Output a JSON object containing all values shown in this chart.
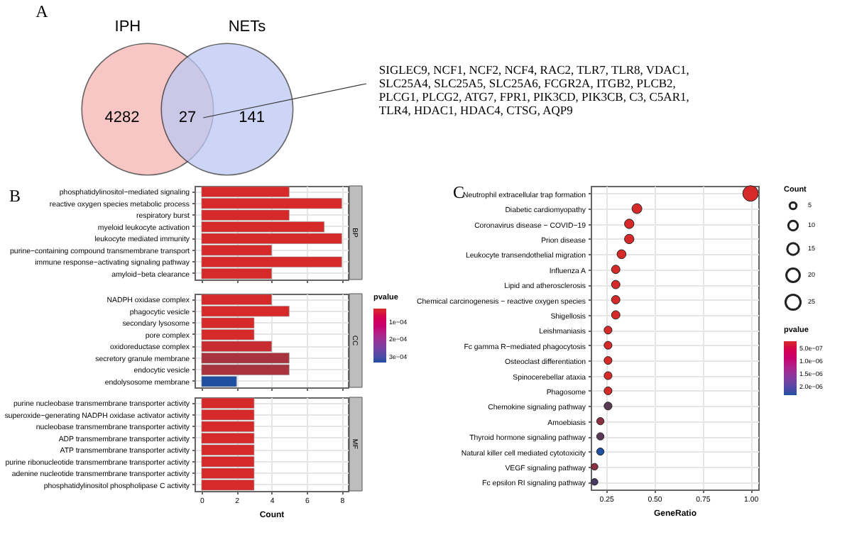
{
  "chart_data": [
    {
      "type": "other",
      "title": "A",
      "categories": [
        "IPH",
        null,
        "NETs"
      ],
      "values": [
        4282,
        27,
        141
      ],
      "colors": [
        "#f7b3b3",
        null,
        "#bcc8f2"
      ],
      "data_labels": true,
      "annotations": [
        "SIGLEC9, NCF1, NCF2, NCF4, RAC2, TLR7, TLR8, VDAC1, SLC25A4, SLC25A5, SLC25A6, FCGR2A, ITGB2, PLCB2, PLCG1, PLCG2, ATG7, FPR1, PIK3CD, PIK3CB, C3, C5AR1, TLR4, HDAC1, HDAC4, CTSG, AQP9"
      ]
    },
    {
      "type": "bar",
      "orientation": "horizontal",
      "title": "B",
      "annotations": [
        "BP"
      ],
      "tick_labels": "y",
      "grid": true,
      "categories": [
        "phosphatidylinositol−mediated signaling",
        "reactive oxygen species metabolic process",
        "respiratory burst",
        "myeloid leukocyte activation",
        "leukocyte mediated immunity",
        "purine−containing compound transmembrane transport",
        "immune response−activating signaling pathway",
        "amyloid−beta clearance"
      ],
      "values": [
        5,
        8,
        5,
        7,
        8,
        4,
        8,
        4
      ],
      "colors": [
        "#d62a2a",
        "#d62a2a",
        "#d62a2a",
        "#d62a2a",
        "#d62a2a",
        "#d62a2a",
        "#d62a2a",
        "#d62a2a"
      ],
      "xlim": [
        -0.4,
        8.35
      ],
      "xticks": [
        0,
        2,
        4,
        6,
        8
      ]
    },
    {
      "type": "bar",
      "orientation": "horizontal",
      "annotations": [
        "CC"
      ],
      "tick_labels": "y",
      "grid": true,
      "categories": [
        "NADPH oxidase complex",
        "phagocytic vesicle",
        "secondary lysosome",
        "pore complex",
        "oxidoreductase complex",
        "secretory granule membrane",
        "endocytic vesicle",
        "endolysosome membrane"
      ],
      "values": [
        4,
        5,
        3,
        3,
        4,
        5,
        5,
        2
      ],
      "colors": [
        "#d62a2a",
        "#d62a2a",
        "#d62a2a",
        "#d62a2a",
        "#c92c30",
        "#a8323e",
        "#a8323e",
        "#1f4fa0"
      ],
      "xlim": [
        -0.4,
        8.35
      ],
      "xticks": [
        0,
        2,
        4,
        6,
        8
      ],
      "clabel": "pvalue",
      "clim": [
        2e-05,
        0.00033
      ],
      "cticks": [
        {
          "value": 0.0001,
          "label": "1e−04"
        },
        {
          "value": 0.0002,
          "label": "2e−04"
        },
        {
          "value": 0.0003,
          "label": "3e−04"
        }
      ]
    },
    {
      "type": "bar",
      "orientation": "horizontal",
      "annotations": [
        "MF"
      ],
      "grid": true,
      "xlabel": "Count",
      "categories": [
        "purine nucleobase transmembrane transporter activity",
        "superoxide−generating NADPH oxidase activator activity",
        "nucleobase transmembrane transporter activity",
        "ADP transmembrane transporter activity",
        "ATP transmembrane transporter activity",
        "purine ribonucleotide transmembrane transporter activity",
        "adenine nucleotide transmembrane transporter activity",
        "phosphatidylinositol phospholipase C activity"
      ],
      "values": [
        3,
        3,
        3,
        3,
        3,
        3,
        3,
        3
      ],
      "colors": [
        "#d62a2a",
        "#d62a2a",
        "#d62a2a",
        "#d62a2a",
        "#d62a2a",
        "#d62a2a",
        "#d62a2a",
        "#d62a2a"
      ],
      "xlim": [
        -0.4,
        8.35
      ],
      "xticks": [
        0,
        2,
        4,
        6,
        8
      ]
    },
    {
      "type": "bubble",
      "orientation": "horizontal",
      "title": "C",
      "xlabel": "GeneRatio",
      "grid": true,
      "legend_title": "Count",
      "categories": [
        "Neutrophil extracellular trap formation",
        "Diabetic cardiomyopathy",
        "Coronavirus disease − COVID−19",
        "Prion disease",
        "Leukocyte transendothelial migration",
        "Influenza A",
        "Lipid and atherosclerosis",
        "Chemical carcinogenesis − reactive oxygen species",
        "Shigellosis",
        "Leishmaniasis",
        "Fc gamma R−mediated phagocytosis",
        "Osteoclast differentiation",
        "Spinocerebellar ataxia",
        "Phagosome",
        "Chemokine signaling pathway",
        "Amoebiasis",
        "Thyroid hormone signaling pathway",
        "Natural killer cell mediated cytotoxicity",
        "VEGF signaling pathway",
        "Fc epsilon RI signaling pathway"
      ],
      "values": [
        1.0,
        0.41,
        0.37,
        0.37,
        0.33,
        0.3,
        0.3,
        0.3,
        0.3,
        0.26,
        0.26,
        0.26,
        0.26,
        0.26,
        0.26,
        0.22,
        0.22,
        0.22,
        0.19,
        0.19
      ],
      "sizes": [
        27,
        11,
        10,
        10,
        9,
        8,
        8,
        8,
        8,
        7,
        7,
        7,
        7,
        7,
        7,
        6,
        6,
        6,
        5,
        5
      ],
      "size_legend": [
        5,
        10,
        15,
        20,
        25
      ],
      "colors": [
        "#d62a2a",
        "#d62a2a",
        "#d62a2a",
        "#d62a2a",
        "#d62a2a",
        "#d62a2a",
        "#d62a2a",
        "#d62a2a",
        "#d62a2a",
        "#d62a2a",
        "#d62a2a",
        "#d62a2a",
        "#d62a2a",
        "#d62a2a",
        "#5a3a55",
        "#8a3040",
        "#5a3a55",
        "#1f4fa0",
        "#8a3040",
        "#4a3a60"
      ],
      "xlim": [
        0.17,
        1.04
      ],
      "xticks": [
        {
          "value": 0.25,
          "label": "0.25"
        },
        {
          "value": 0.5,
          "label": "0.50"
        },
        {
          "value": 0.75,
          "label": "0.75"
        },
        {
          "value": 1.0,
          "label": "1.00"
        }
      ],
      "clabel": "pvalue",
      "clim": [
        2e-07,
        2.3e-06
      ],
      "cticks": [
        {
          "value": 5e-07,
          "label": "5.0e−07"
        },
        {
          "value": 1e-06,
          "label": "1.0e−06"
        },
        {
          "value": 1.5e-06,
          "label": "1.5e−06"
        },
        {
          "value": 2e-06,
          "label": "2.0e−06"
        }
      ]
    }
  ]
}
